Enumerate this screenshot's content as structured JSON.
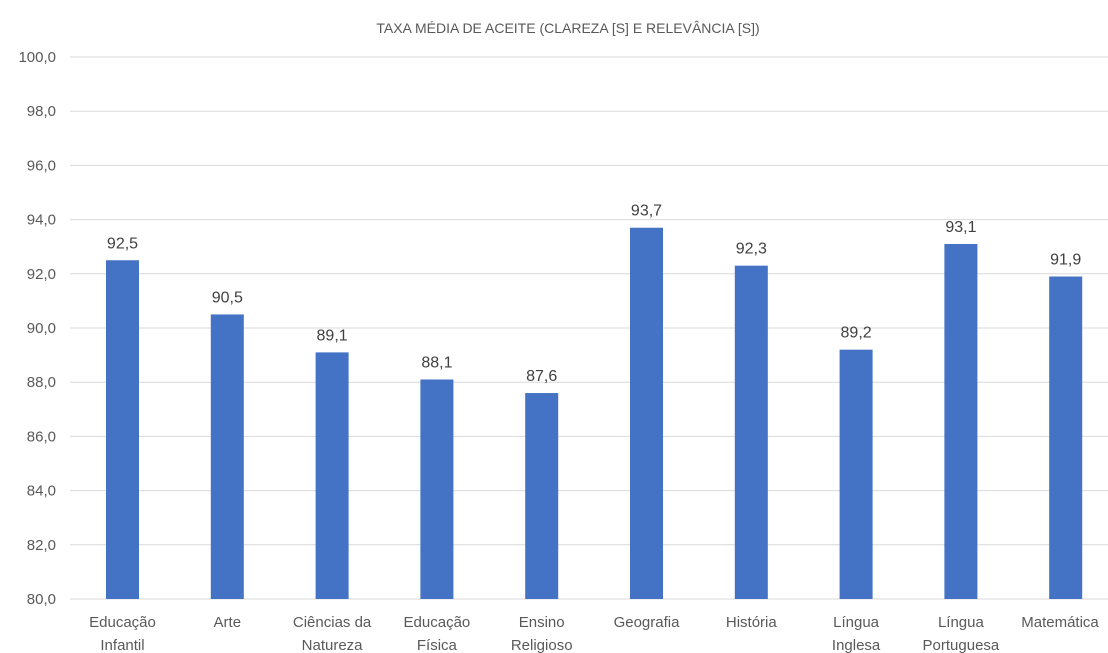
{
  "chart_data": {
    "type": "bar",
    "title": "TAXA MÉDIA DE ACEITE (CLAREZA [S] E RELEVÂNCIA [S])",
    "categories": [
      [
        "Educação",
        "Infantil"
      ],
      [
        "Arte"
      ],
      [
        "Ciências da",
        "Natureza"
      ],
      [
        "Educação",
        "Física"
      ],
      [
        "Ensino",
        "Religioso"
      ],
      [
        "Geografia"
      ],
      [
        "História"
      ],
      [
        "Língua",
        "Inglesa"
      ],
      [
        "Língua",
        "Portuguesa"
      ],
      [
        "Matemática"
      ]
    ],
    "values": [
      92.5,
      90.5,
      89.1,
      88.1,
      87.6,
      93.7,
      92.3,
      89.2,
      93.1,
      91.9
    ],
    "data_labels": [
      "92,5",
      "90,5",
      "89,1",
      "88,1",
      "87,6",
      "93,7",
      "92,3",
      "89,2",
      "93,1",
      "91,9"
    ],
    "ylim": [
      80,
      100
    ],
    "y_ticks": [
      "80,0",
      "82,0",
      "84,0",
      "86,0",
      "88,0",
      "90,0",
      "92,0",
      "94,0",
      "96,0",
      "98,0",
      "100,0"
    ],
    "y_tick_values": [
      80,
      82,
      84,
      86,
      88,
      90,
      92,
      94,
      96,
      98,
      100
    ],
    "xlabel": "",
    "ylabel": "",
    "grid": true,
    "bar_color": "#4472c4"
  }
}
